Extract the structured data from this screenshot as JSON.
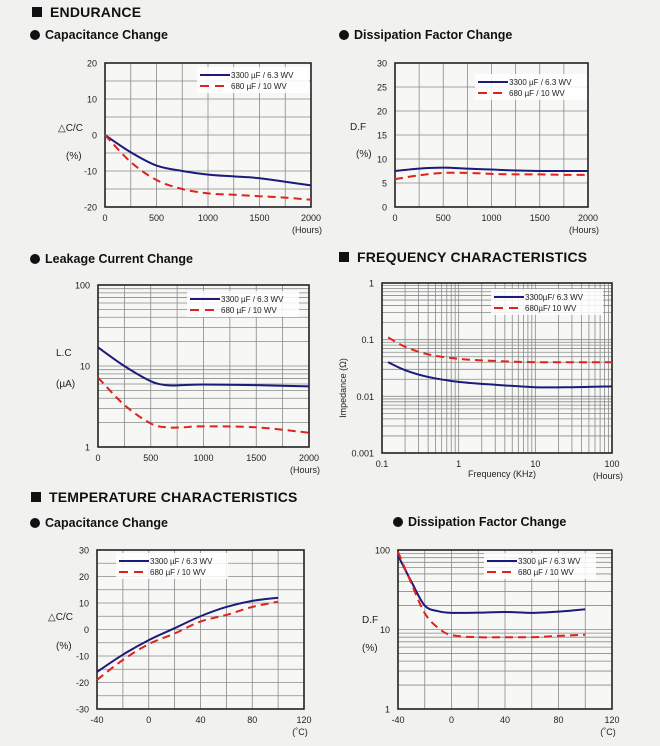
{
  "sections": {
    "endurance": "ENDURANCE",
    "frequency": "FREQUENCY CHARACTERISTICS",
    "temperature": "TEMPERATURE CHARACTERISTICS"
  },
  "colors": {
    "series1": "#1c1a7a",
    "series2": "#e0221c",
    "grid": "#8a8a8a",
    "frame": "#222222",
    "plot_bg": "#f7f7f5"
  },
  "chart_data": [
    {
      "id": "end-cap",
      "type": "line",
      "title": "Capacitance Change",
      "ylabel": "△C/C",
      "yunit": "(%)",
      "xlabel": "",
      "xunit": "(Hours)",
      "xscale": "linear",
      "yscale": "linear",
      "xlim": [
        0,
        2000
      ],
      "ylim": [
        -20,
        20
      ],
      "xticks": [
        0,
        500,
        1000,
        1500,
        2000
      ],
      "xtick_labels": [
        "0",
        "500",
        "1000",
        "1500",
        "2000"
      ],
      "yticks": [
        -20,
        -10,
        0,
        10,
        20
      ],
      "ytick_labels": [
        "-20",
        "-10",
        "0",
        "10",
        "20"
      ],
      "xgrid": [
        250,
        500,
        750,
        1000,
        1250,
        1500,
        1750
      ],
      "ygrid": [
        -15,
        -10,
        -5,
        0,
        5,
        10,
        15
      ],
      "legend": "top-right",
      "series": [
        {
          "name": "3300 µF / 6.3 WV",
          "style": "solid",
          "x": [
            0,
            250,
            500,
            750,
            1000,
            1250,
            1500,
            1750,
            2000
          ],
          "y": [
            0,
            -4.8,
            -8.5,
            -10,
            -11,
            -11.5,
            -12,
            -13,
            -14
          ]
        },
        {
          "name": "680 µF / 10 WV",
          "style": "dashed",
          "x": [
            0,
            250,
            500,
            750,
            1000,
            1250,
            1500,
            1750,
            2000
          ],
          "y": [
            0,
            -7.5,
            -12.5,
            -15,
            -16.2,
            -16.6,
            -17,
            -17.4,
            -18
          ]
        }
      ]
    },
    {
      "id": "end-df",
      "type": "line",
      "title": "Dissipation Factor Change",
      "ylabel": "D.F",
      "yunit": "(%)",
      "xlabel": "",
      "xunit": "(Hours)",
      "xscale": "linear",
      "yscale": "linear",
      "xlim": [
        0,
        2000
      ],
      "ylim": [
        0,
        30
      ],
      "xticks": [
        0,
        500,
        1000,
        1500,
        2000
      ],
      "xtick_labels": [
        "0",
        "500",
        "1000",
        "1500",
        "2000"
      ],
      "yticks": [
        0,
        5,
        10,
        15,
        20,
        25,
        30
      ],
      "ytick_labels": [
        "0",
        "5",
        "10",
        "15",
        "20",
        "25",
        "30"
      ],
      "xgrid": [
        250,
        500,
        750,
        1000,
        1250,
        1500,
        1750
      ],
      "ygrid": [
        5,
        10,
        15,
        20,
        25
      ],
      "legend": "top-right",
      "series": [
        {
          "name": "3300 µF / 6.3 WV",
          "style": "solid",
          "x": [
            0,
            250,
            500,
            750,
            1000,
            1250,
            1500,
            1750,
            2000
          ],
          "y": [
            7.5,
            8,
            8.2,
            8,
            7.8,
            7.6,
            7.5,
            7.5,
            7.5
          ]
        },
        {
          "name": "680 µF / 10 WV",
          "style": "dashed",
          "x": [
            0,
            250,
            500,
            750,
            1000,
            1250,
            1500,
            1750,
            2000
          ],
          "y": [
            5.8,
            6.6,
            7.1,
            7.1,
            6.9,
            6.8,
            6.8,
            6.7,
            6.7
          ]
        }
      ]
    },
    {
      "id": "end-lc",
      "type": "line",
      "title": "Leakage Current Change",
      "ylabel": "L.C",
      "yunit": "(µA)",
      "xlabel": "",
      "xunit": "(Hours)",
      "xscale": "linear",
      "yscale": "log",
      "xlim": [
        0,
        2000
      ],
      "ylim": [
        1,
        100
      ],
      "xticks": [
        0,
        500,
        1000,
        1500,
        2000
      ],
      "xtick_labels": [
        "0",
        "500",
        "1000",
        "1500",
        "2000"
      ],
      "yticks": [
        1,
        10,
        100
      ],
      "ytick_labels": [
        "1",
        "10",
        "100"
      ],
      "xgrid": [
        250,
        500,
        750,
        1000,
        1250,
        1500,
        1750
      ],
      "ygrid": [
        2,
        3,
        4,
        5,
        6,
        7,
        8,
        9,
        10,
        20,
        30,
        40,
        50,
        60,
        70,
        80,
        90
      ],
      "legend": "top-right",
      "series": [
        {
          "name": "3300 µF / 6.3 WV",
          "style": "solid",
          "x": [
            0,
            250,
            500,
            650,
            800,
            1000,
            1500,
            2000
          ],
          "y": [
            17,
            10,
            6.5,
            5.8,
            5.8,
            5.9,
            5.8,
            5.6
          ]
        },
        {
          "name": "680 µF / 10 WV",
          "style": "dashed",
          "x": [
            0,
            250,
            500,
            650,
            800,
            1000,
            1500,
            2000
          ],
          "y": [
            7.2,
            3.3,
            1.95,
            1.75,
            1.75,
            1.8,
            1.75,
            1.5
          ]
        }
      ]
    },
    {
      "id": "freq-imp",
      "type": "line",
      "title": "",
      "ylabel": "Impedance (Ω)",
      "yunit": "",
      "xlabel": "Frequency (KHz)",
      "xunit": "(Hours)",
      "xscale": "log",
      "yscale": "log",
      "xlim": [
        0.1,
        100
      ],
      "ylim": [
        0.001,
        1
      ],
      "xticks": [
        0.1,
        1,
        10,
        100
      ],
      "xtick_labels": [
        "0.1",
        "1",
        "10",
        "100"
      ],
      "yticks": [
        0.001,
        0.01,
        0.1,
        1
      ],
      "ytick_labels": [
        "0.001",
        "0.01",
        "0.1",
        "1"
      ],
      "xgrid": "log-decades",
      "ygrid": "log-decades",
      "legend": "top-right",
      "series": [
        {
          "name": "3300µF/ 6.3 WV",
          "style": "solid",
          "x": [
            0.12,
            0.2,
            0.4,
            1,
            3,
            10,
            30,
            100
          ],
          "y": [
            0.04,
            0.029,
            0.022,
            0.018,
            0.016,
            0.0145,
            0.0145,
            0.015
          ]
        },
        {
          "name": "680µF/ 10 WV",
          "style": "dashed",
          "x": [
            0.12,
            0.2,
            0.4,
            1,
            3,
            10,
            30,
            100
          ],
          "y": [
            0.11,
            0.075,
            0.055,
            0.046,
            0.042,
            0.04,
            0.04,
            0.04
          ]
        }
      ]
    },
    {
      "id": "temp-cap",
      "type": "line",
      "title": "Capacitance Change",
      "ylabel": "△C/C",
      "yunit": "(%)",
      "xlabel": "",
      "xunit": "(˚C)",
      "xscale": "linear",
      "yscale": "linear",
      "xlim": [
        -40,
        120
      ],
      "ylim": [
        -30,
        30
      ],
      "xticks": [
        -40,
        0,
        40,
        80,
        120
      ],
      "xtick_labels": [
        "-40",
        "0",
        "40",
        "80",
        "120"
      ],
      "yticks": [
        -30,
        -20,
        -10,
        0,
        10,
        20,
        30
      ],
      "ytick_labels": [
        "-30",
        "-20",
        "-10",
        "0",
        "10",
        "20",
        "30"
      ],
      "xgrid": [
        -20,
        0,
        20,
        40,
        60,
        80,
        100
      ],
      "ygrid": [
        -25,
        -20,
        -15,
        -10,
        -5,
        0,
        5,
        10,
        15,
        20,
        25
      ],
      "legend": "top-left",
      "series": [
        {
          "name": "3300 µF / 6.3 WV",
          "style": "solid",
          "x": [
            -40,
            -20,
            0,
            20,
            40,
            60,
            80,
            100
          ],
          "y": [
            -16,
            -9.5,
            -4,
            0.5,
            5,
            8.5,
            10.8,
            12
          ]
        },
        {
          "name": "680 µF / 10 WV",
          "style": "dashed",
          "x": [
            -40,
            -20,
            0,
            20,
            40,
            60,
            80,
            100
          ],
          "y": [
            -19,
            -11.5,
            -5.5,
            -1.5,
            3,
            5.5,
            8.5,
            10.5
          ]
        }
      ]
    },
    {
      "id": "temp-df",
      "type": "line",
      "title": "Dissipation Factor Change",
      "ylabel": "D.F",
      "yunit": "(%)",
      "xlabel": "",
      "xunit": "(˚C)",
      "xscale": "linear",
      "yscale": "log",
      "xlim": [
        -40,
        120
      ],
      "ylim": [
        1,
        100
      ],
      "xticks": [
        -40,
        0,
        40,
        80,
        120
      ],
      "xtick_labels": [
        "-40",
        "0",
        "40",
        "80",
        "120"
      ],
      "yticks": [
        1,
        10,
        100
      ],
      "ytick_labels": [
        "1",
        "10",
        "100"
      ],
      "xgrid": [
        -20,
        0,
        20,
        40,
        60,
        80,
        100
      ],
      "ygrid": [
        2,
        3,
        4,
        5,
        6,
        7,
        8,
        9,
        10,
        20,
        30,
        40,
        50,
        60,
        70,
        80,
        90
      ],
      "legend": "top-right",
      "series": [
        {
          "name": "3300 µF / 6.3 WV",
          "style": "solid",
          "x": [
            -40,
            -30,
            -20,
            -10,
            0,
            20,
            40,
            60,
            80,
            100
          ],
          "y": [
            85,
            40,
            20,
            17,
            16.2,
            16.3,
            16.6,
            16.2,
            16.8,
            18
          ]
        },
        {
          "name": "680 µF / 10 WV",
          "style": "dashed",
          "x": [
            -40,
            -30,
            -20,
            -10,
            0,
            20,
            40,
            60,
            80,
            100
          ],
          "y": [
            95,
            38,
            16,
            10.5,
            8.5,
            8,
            8,
            8,
            8.3,
            8.6
          ]
        }
      ]
    }
  ]
}
